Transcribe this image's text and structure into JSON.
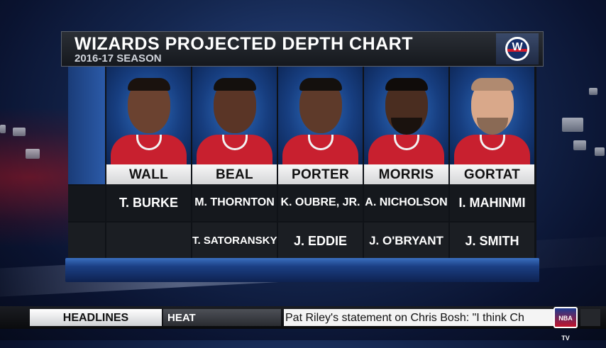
{
  "header": {
    "title": "WIZARDS PROJECTED DEPTH CHART",
    "subtitle": "2016-17 SEASON",
    "logo_icon": "wizards-logo-icon"
  },
  "depth_chart": {
    "columns": [
      {
        "starter": "WALL",
        "backup1": "T. BURKE",
        "backup2": "",
        "skin": "#6b4230",
        "hair": "#1a120e",
        "beard": false
      },
      {
        "starter": "BEAL",
        "backup1": "M. THORNTON",
        "backup2": "T. SATORANSKY",
        "skin": "#5a3526",
        "hair": "#14100d",
        "beard": false
      },
      {
        "starter": "PORTER",
        "backup1": "K. OUBRE, JR.",
        "backup2": "J. EDDIE",
        "skin": "#5e3a2a",
        "hair": "#14100d",
        "beard": false
      },
      {
        "starter": "MORRIS",
        "backup1": "A. NICHOLSON",
        "backup2": "J. O'BRYANT",
        "skin": "#4a2d20",
        "hair": "#100c0a",
        "beard": true
      },
      {
        "starter": "GORTAT",
        "backup1": "I. MAHINMI",
        "backup2": "J. SMITH",
        "skin": "#d9a88a",
        "hair": "#b08a70",
        "beard": true
      }
    ]
  },
  "colors": {
    "jersey_red": "#c8202f",
    "panel_blue": "#1a3c78"
  },
  "ticker": {
    "section_label": "HEADLINES",
    "topic_label": "HEAT",
    "headline_text": "Pat Riley's statement on Chris Bosh:  \"I think Ch",
    "network_logo": "NBA TV"
  }
}
